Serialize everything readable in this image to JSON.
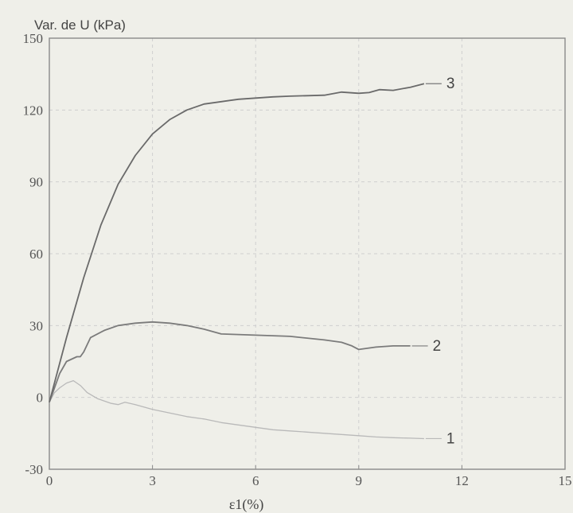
{
  "chart_data": {
    "type": "line",
    "title": "",
    "ylabel": "Var. de U (kPa)",
    "xlabel": "ε1(%)",
    "xlim": [
      0,
      15
    ],
    "ylim": [
      -30,
      150
    ],
    "xticks": [
      0,
      3,
      6,
      9,
      12,
      15
    ],
    "yticks": [
      -30,
      0,
      30,
      60,
      90,
      120,
      150
    ],
    "x_tick_labels": [
      "0",
      "3",
      "6",
      "9",
      "12",
      "15"
    ],
    "y_tick_labels": [
      "-30",
      "0",
      "30",
      "60",
      "90",
      "120",
      "150"
    ],
    "grid": true,
    "legend": "none",
    "series": [
      {
        "name": "1",
        "color": "#b9b9b9",
        "x": [
          0,
          0.15,
          0.3,
          0.5,
          0.7,
          0.9,
          1.1,
          1.4,
          1.8,
          2.0,
          2.2,
          2.5,
          3.0,
          3.5,
          4.0,
          4.5,
          5.0,
          5.5,
          6.0,
          6.5,
          7.0,
          7.5,
          8.0,
          8.5,
          9.0,
          9.5,
          10.0,
          10.5,
          10.9
        ],
        "y": [
          -2,
          2,
          4,
          6,
          7,
          5,
          2,
          -0.5,
          -2.5,
          -3,
          -2,
          -3,
          -5,
          -6.5,
          -8,
          -9,
          -10.5,
          -11.5,
          -12.5,
          -13.5,
          -14,
          -14.5,
          -15,
          -15.5,
          -16,
          -16.5,
          -16.8,
          -17,
          -17.2
        ]
      },
      {
        "name": "2",
        "color": "#7b7b7b",
        "x": [
          0,
          0.3,
          0.5,
          0.8,
          0.9,
          1.0,
          1.2,
          1.6,
          2.0,
          2.5,
          3.0,
          3.5,
          4.0,
          4.5,
          5.0,
          6.0,
          7.0,
          8.0,
          8.5,
          8.8,
          9.0,
          9.5,
          10.0,
          10.5
        ],
        "y": [
          -2,
          10,
          15,
          17,
          17,
          19,
          25,
          28,
          30,
          31,
          31.5,
          31,
          30,
          28.5,
          26.5,
          26,
          25.5,
          24,
          23,
          21.5,
          20,
          21,
          21.5,
          21.5
        ]
      },
      {
        "name": "3",
        "color": "#6a6a6a",
        "x": [
          0,
          0.5,
          1.0,
          1.5,
          2.0,
          2.5,
          3.0,
          3.5,
          4.0,
          4.5,
          5.0,
          5.5,
          6.0,
          6.5,
          7.0,
          7.5,
          8.0,
          8.5,
          9.0,
          9.3,
          9.6,
          10.0,
          10.5,
          10.9
        ],
        "y": [
          -2,
          25,
          50,
          72,
          89,
          101,
          110,
          116,
          120,
          122.5,
          123.5,
          124.5,
          125,
          125.5,
          125.8,
          126,
          126.2,
          127.5,
          127,
          127.3,
          128.5,
          128.2,
          129.5,
          131
        ]
      }
    ]
  }
}
